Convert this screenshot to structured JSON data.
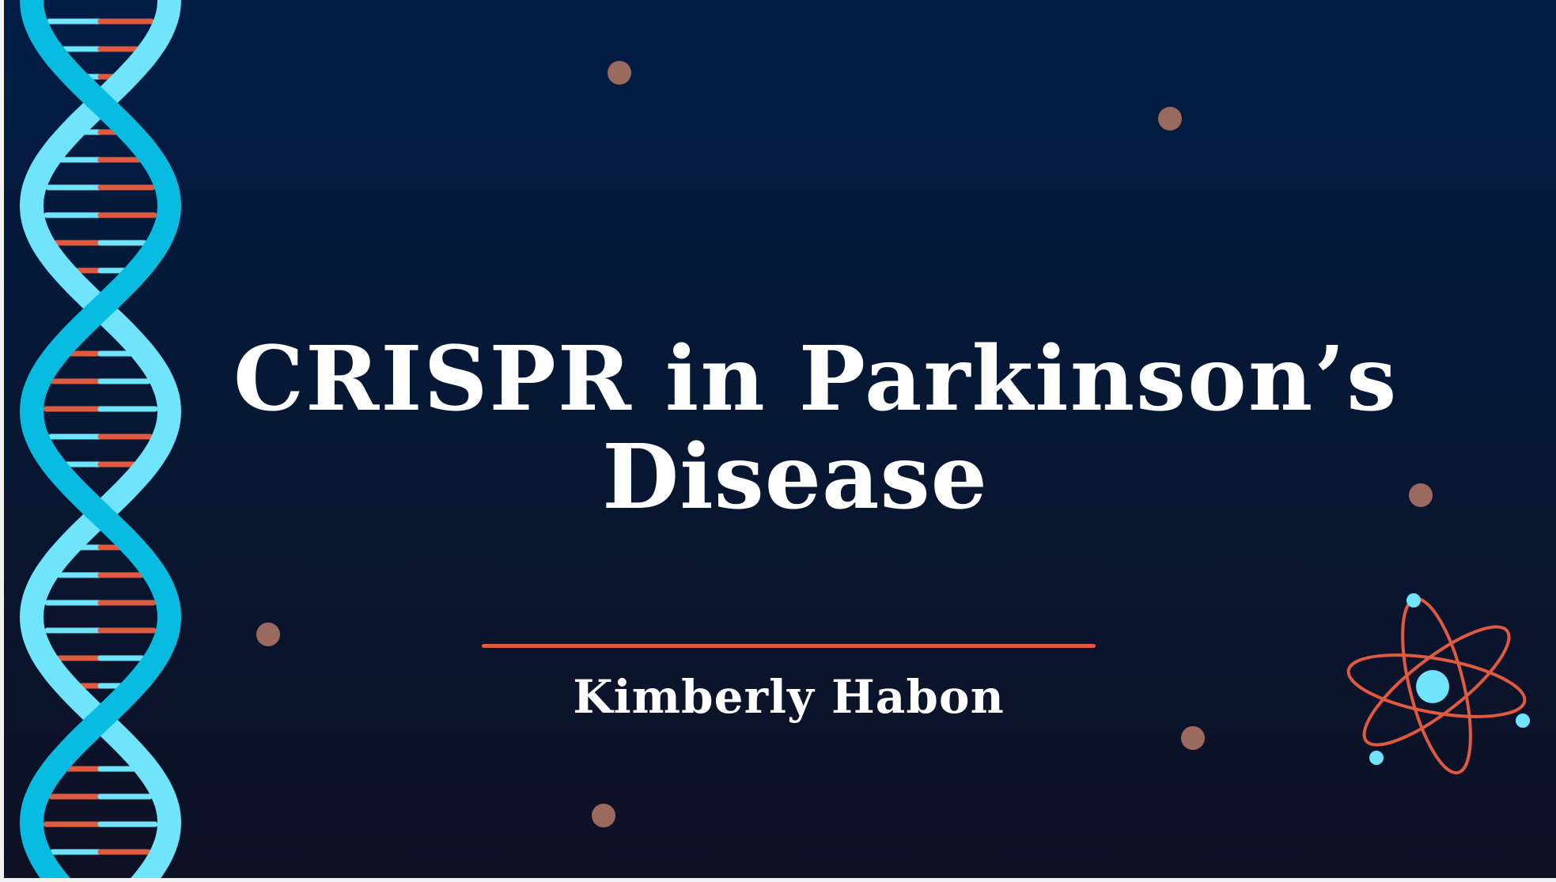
{
  "slide": {
    "title_line1": "CRISPR in Parkinson’s",
    "title_line2": "Disease",
    "author": "Kimberly Habon"
  },
  "colors": {
    "background_top": "#011d46",
    "background_bottom": "#0e1124",
    "helix_light": "#6fe4fb",
    "helix_dark": "#08bce1",
    "accent_orange": "#e05a3f",
    "dot": "#9b6a5f",
    "text": "#ffffff"
  },
  "icons": [
    "dna-helix-icon",
    "atom-icon"
  ]
}
